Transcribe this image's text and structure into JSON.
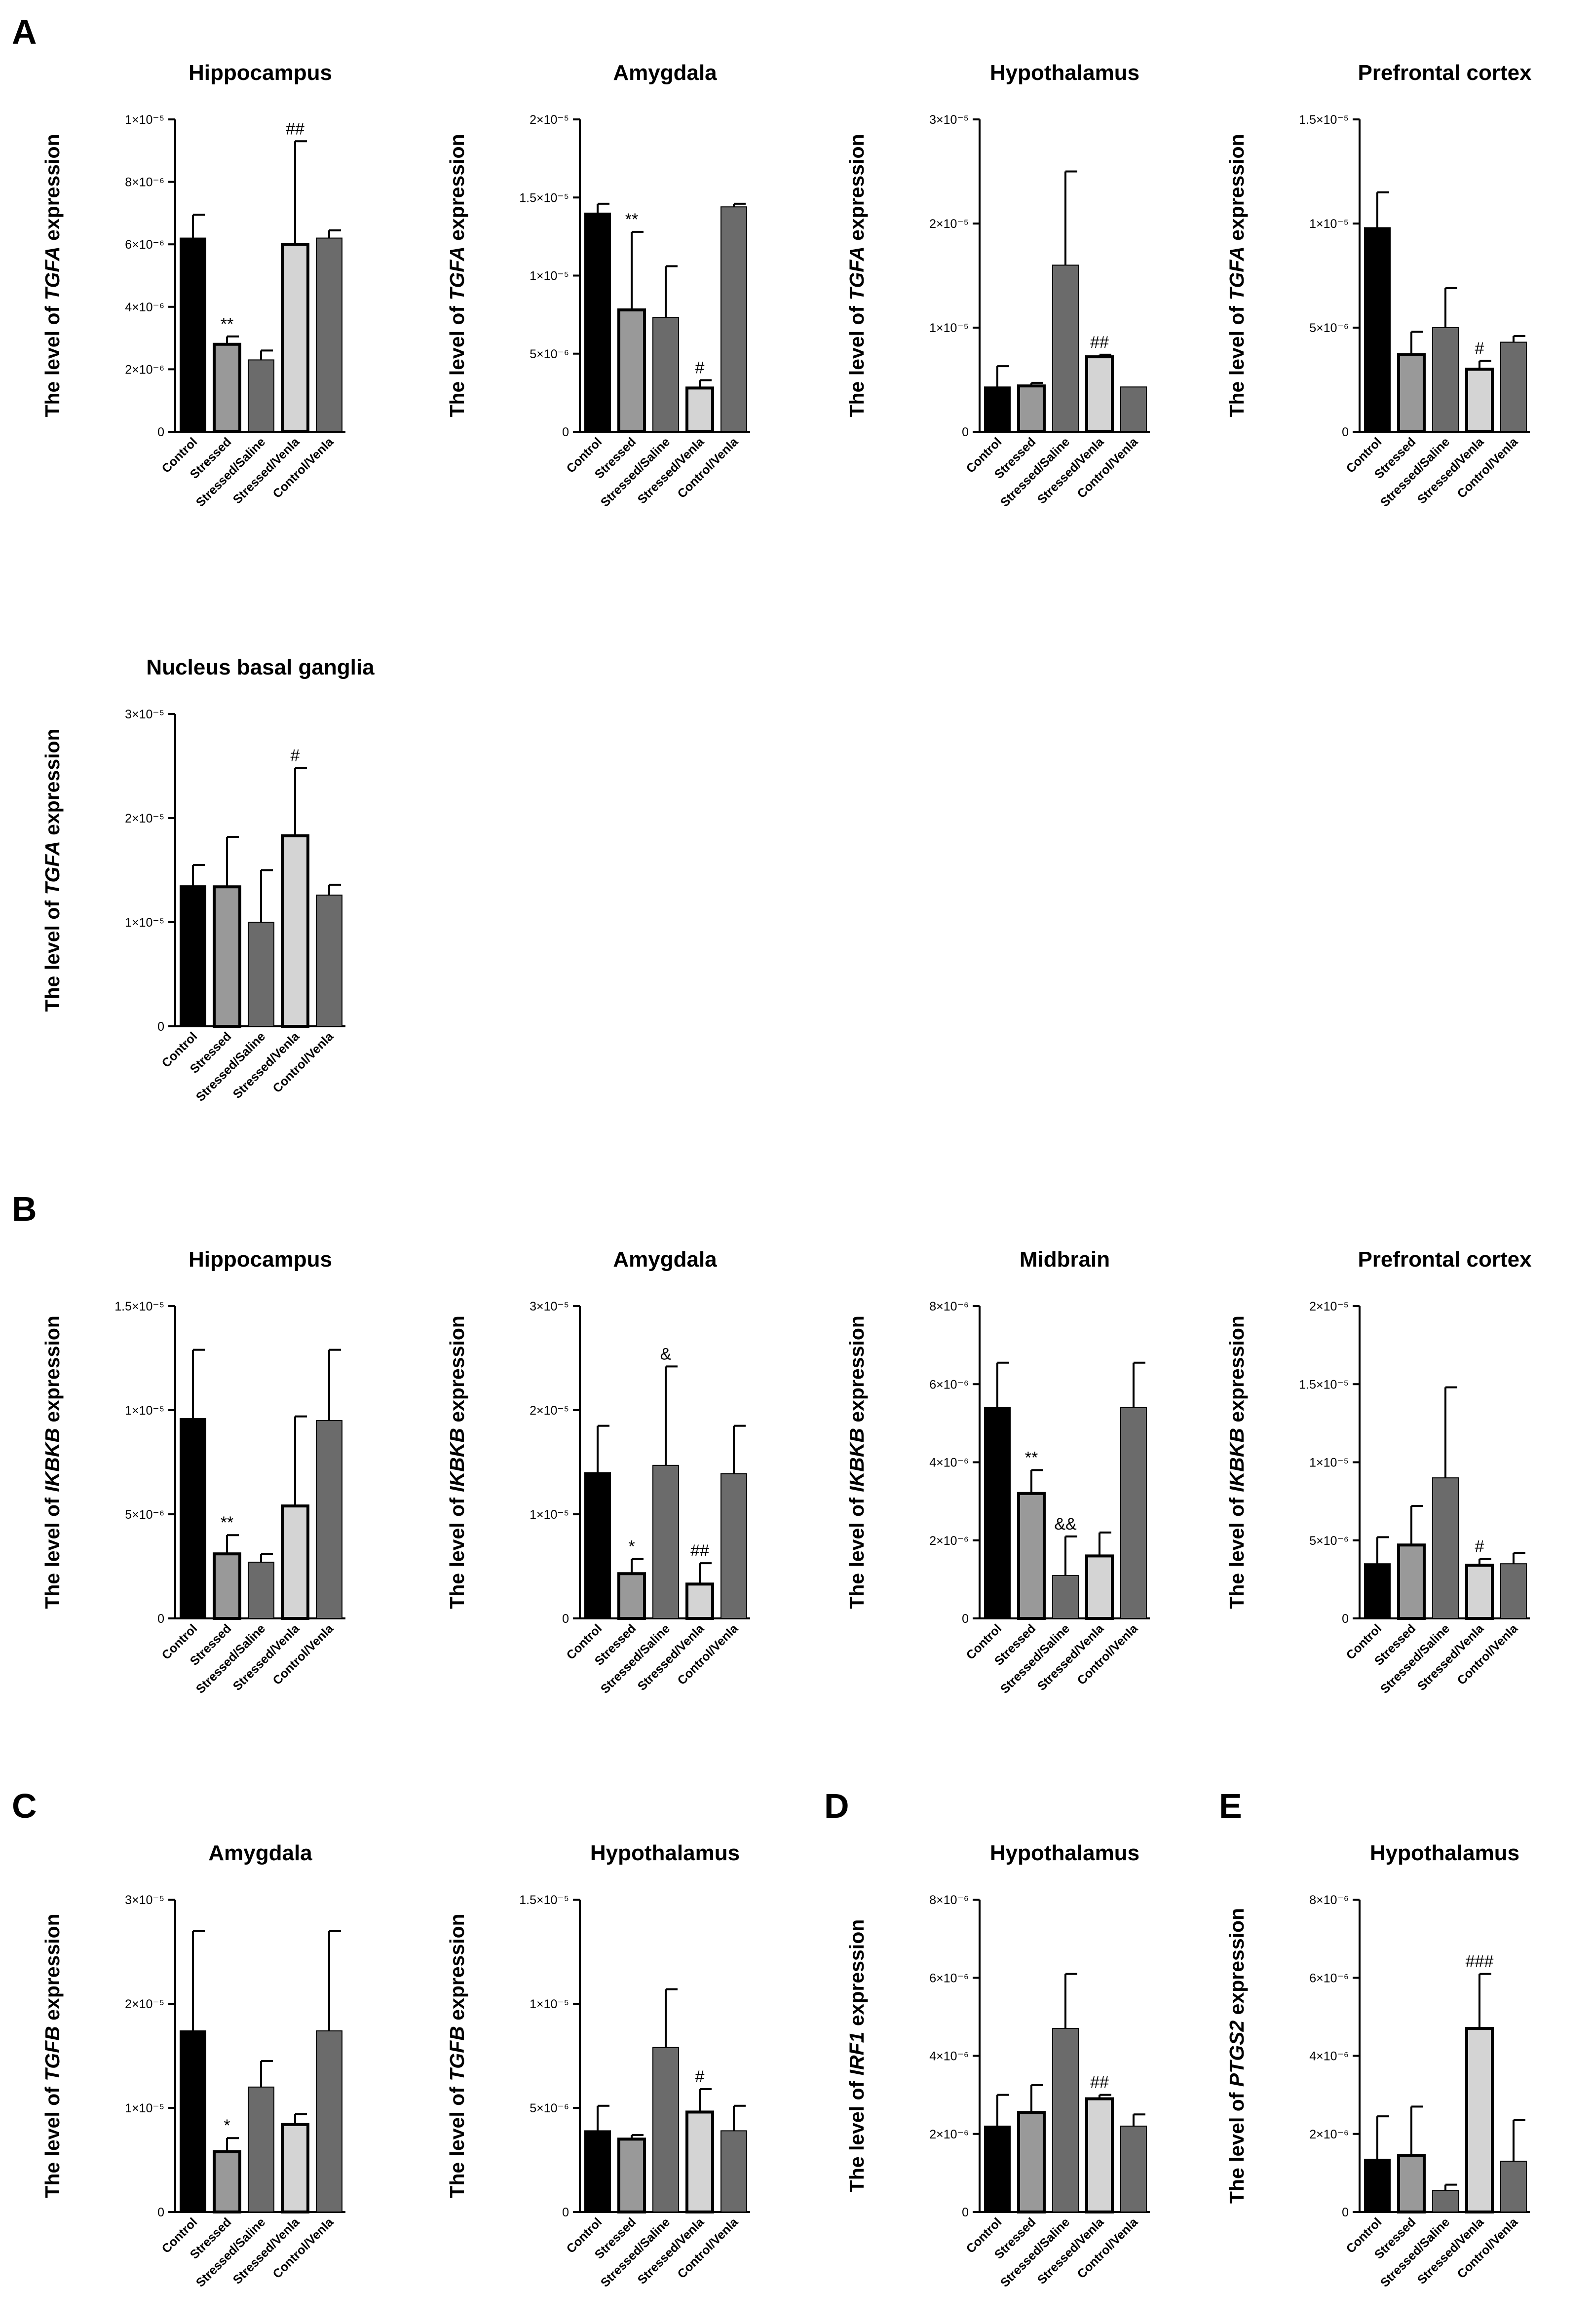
{
  "figure": {
    "panel_letters": [
      "A",
      "B",
      "C",
      "D",
      "E"
    ]
  },
  "colors": {
    "Control": "#000000",
    "Stressed": "#999999",
    "Stressed/Saline": "#6b6b6b",
    "Stressed/Venla": "#d4d4d4",
    "Control/Venla": "#6b6b6b"
  },
  "chart_data": [
    {
      "id": "A-hippocampus",
      "panel": "A",
      "type": "bar",
      "title": "Hippocampus",
      "gene": "TGFA",
      "ylabel_prefix": "The level of ",
      "ylabel_suffix": " expression",
      "categories": [
        "Control",
        "Stressed",
        "Stressed/Saline",
        "Stressed/Venla",
        "Control/Venla"
      ],
      "values": [
        6.2e-06,
        2.8e-06,
        2.3e-06,
        6e-06,
        6.2e-06
      ],
      "errors": [
        7.5e-07,
        2.5e-07,
        3e-07,
        3.3e-06,
        2.5e-07
      ],
      "annotations": [
        "",
        "**",
        "",
        "##",
        ""
      ],
      "ylim": [
        0,
        1e-05
      ],
      "ticks": [
        {
          "v": 0,
          "label": "0"
        },
        {
          "v": 2e-06,
          "label": "2×10⁻⁶"
        },
        {
          "v": 4e-06,
          "label": "4×10⁻⁶"
        },
        {
          "v": 6e-06,
          "label": "6×10⁻⁶"
        },
        {
          "v": 8e-06,
          "label": "8×10⁻⁶"
        },
        {
          "v": 1e-05,
          "label": "1×10⁻⁵"
        }
      ]
    },
    {
      "id": "A-amygdala",
      "panel": "A",
      "type": "bar",
      "title": "Amygdala",
      "gene": "TGFA",
      "ylabel_prefix": "The level of ",
      "ylabel_suffix": " expression",
      "categories": [
        "Control",
        "Stressed",
        "Stressed/Saline",
        "Stressed/Venla",
        "Control/Venla"
      ],
      "values": [
        1.4e-05,
        7.8e-06,
        7.3e-06,
        2.8e-06,
        1.44e-05
      ],
      "errors": [
        6e-07,
        5e-06,
        3.3e-06,
        5e-07,
        2e-07
      ],
      "annotations": [
        "",
        "**",
        "",
        "#",
        ""
      ],
      "ylim": [
        0,
        2e-05
      ],
      "ticks": [
        {
          "v": 0,
          "label": "0"
        },
        {
          "v": 5e-06,
          "label": "5×10⁻⁶"
        },
        {
          "v": 1e-05,
          "label": "1×10⁻⁵"
        },
        {
          "v": 1.5e-05,
          "label": "1.5×10⁻⁵"
        },
        {
          "v": 2e-05,
          "label": "2×10⁻⁵"
        }
      ]
    },
    {
      "id": "A-hypothalamus",
      "panel": "A",
      "type": "bar",
      "title": "Hypothalamus",
      "gene": "TGFA",
      "ylabel_prefix": "The level of ",
      "ylabel_suffix": " expression",
      "categories": [
        "Control",
        "Stressed",
        "Stressed/Saline",
        "Stressed/Venla",
        "Control/Venla"
      ],
      "values": [
        4.3e-06,
        4.4e-06,
        1.6e-05,
        7.2e-06,
        4.3e-06
      ],
      "errors": [
        2e-06,
        3e-07,
        9e-06,
        2e-07,
        0
      ],
      "annotations": [
        "",
        "",
        "",
        "##",
        ""
      ],
      "ylim": [
        0,
        3e-05
      ],
      "ticks": [
        {
          "v": 0,
          "label": "0"
        },
        {
          "v": 1e-05,
          "label": "1×10⁻⁵"
        },
        {
          "v": 2e-05,
          "label": "2×10⁻⁵"
        },
        {
          "v": 3e-05,
          "label": "3×10⁻⁵"
        }
      ]
    },
    {
      "id": "A-prefrontal",
      "panel": "A",
      "type": "bar",
      "title": "Prefrontal cortex",
      "gene": "TGFA",
      "ylabel_prefix": "The level of ",
      "ylabel_suffix": " expression",
      "categories": [
        "Control",
        "Stressed",
        "Stressed/Saline",
        "Stressed/Venla",
        "Control/Venla"
      ],
      "values": [
        9.8e-06,
        3.7e-06,
        5e-06,
        3e-06,
        4.3e-06
      ],
      "errors": [
        1.7e-06,
        1.1e-06,
        1.9e-06,
        4e-07,
        3e-07
      ],
      "annotations": [
        "",
        "",
        "",
        "#",
        ""
      ],
      "ylim": [
        0,
        1.5e-05
      ],
      "ticks": [
        {
          "v": 0,
          "label": "0"
        },
        {
          "v": 5e-06,
          "label": "5×10⁻⁶"
        },
        {
          "v": 1e-05,
          "label": "1×10⁻⁵"
        },
        {
          "v": 1.5e-05,
          "label": "1.5×10⁻⁵"
        }
      ]
    },
    {
      "id": "A-nbg",
      "panel": "A",
      "type": "bar",
      "title": "Nucleus basal ganglia",
      "gene": "TGFA",
      "ylabel_prefix": "The level of ",
      "ylabel_suffix": " expression",
      "categories": [
        "Control",
        "Stressed",
        "Stressed/Saline",
        "Stressed/Venla",
        "Control/Venla"
      ],
      "values": [
        1.35e-05,
        1.34e-05,
        1e-05,
        1.83e-05,
        1.26e-05
      ],
      "errors": [
        2e-06,
        4.8e-06,
        5e-06,
        6.5e-06,
        1e-06
      ],
      "annotations": [
        "",
        "",
        "",
        "#",
        ""
      ],
      "ylim": [
        0,
        3e-05
      ],
      "ticks": [
        {
          "v": 0,
          "label": "0"
        },
        {
          "v": 1e-05,
          "label": "1×10⁻⁵"
        },
        {
          "v": 2e-05,
          "label": "2×10⁻⁵"
        },
        {
          "v": 3e-05,
          "label": "3×10⁻⁵"
        }
      ]
    },
    {
      "id": "B-hippocampus",
      "panel": "B",
      "type": "bar",
      "title": "Hippocampus",
      "gene": "IKBKB",
      "ylabel_prefix": "The level of ",
      "ylabel_suffix": " expression",
      "categories": [
        "Control",
        "Stressed",
        "Stressed/Saline",
        "Stressed/Venla",
        "Control/Venla"
      ],
      "values": [
        9.6e-06,
        3.1e-06,
        2.7e-06,
        5.4e-06,
        9.5e-06
      ],
      "errors": [
        3.3e-06,
        9e-07,
        4e-07,
        4.3e-06,
        3.4e-06
      ],
      "annotations": [
        "",
        "**",
        "",
        "",
        ""
      ],
      "ylim": [
        0,
        1.5e-05
      ],
      "ticks": [
        {
          "v": 0,
          "label": "0"
        },
        {
          "v": 5e-06,
          "label": "5×10⁻⁶"
        },
        {
          "v": 1e-05,
          "label": "1×10⁻⁵"
        },
        {
          "v": 1.5e-05,
          "label": "1.5×10⁻⁵"
        }
      ]
    },
    {
      "id": "B-amygdala",
      "panel": "B",
      "type": "bar",
      "title": "Amygdala",
      "gene": "IKBKB",
      "ylabel_prefix": "The level of ",
      "ylabel_suffix": " expression",
      "categories": [
        "Control",
        "Stressed",
        "Stressed/Saline",
        "Stressed/Venla",
        "Control/Venla"
      ],
      "values": [
        1.4e-05,
        4.3e-06,
        1.47e-05,
        3.3e-06,
        1.39e-05
      ],
      "errors": [
        4.5e-06,
        1.4e-06,
        9.5e-06,
        2e-06,
        4.6e-06
      ],
      "annotations": [
        "",
        "*",
        "&",
        "##",
        ""
      ],
      "ylim": [
        0,
        3e-05
      ],
      "ticks": [
        {
          "v": 0,
          "label": "0"
        },
        {
          "v": 1e-05,
          "label": "1×10⁻⁵"
        },
        {
          "v": 2e-05,
          "label": "2×10⁻⁵"
        },
        {
          "v": 3e-05,
          "label": "3×10⁻⁵"
        }
      ]
    },
    {
      "id": "B-midbrain",
      "panel": "B",
      "type": "bar",
      "title": "Midbrain",
      "gene": "IKBKB",
      "ylabel_prefix": "The level of ",
      "ylabel_suffix": " expression",
      "categories": [
        "Control",
        "Stressed",
        "Stressed/Saline",
        "Stressed/Venla",
        "Control/Venla"
      ],
      "values": [
        5.4e-06,
        3.2e-06,
        1.1e-06,
        1.6e-06,
        5.4e-06
      ],
      "errors": [
        1.15e-06,
        6e-07,
        1e-06,
        6e-07,
        1.15e-06
      ],
      "annotations": [
        "",
        "**",
        "&&",
        "",
        ""
      ],
      "ylim": [
        0,
        8e-06
      ],
      "ticks": [
        {
          "v": 0,
          "label": "0"
        },
        {
          "v": 2e-06,
          "label": "2×10⁻⁶"
        },
        {
          "v": 4e-06,
          "label": "4×10⁻⁶"
        },
        {
          "v": 6e-06,
          "label": "6×10⁻⁶"
        },
        {
          "v": 8e-06,
          "label": "8×10⁻⁶"
        }
      ]
    },
    {
      "id": "B-prefrontal",
      "panel": "B",
      "type": "bar",
      "title": "Prefrontal cortex",
      "gene": "IKBKB",
      "ylabel_prefix": "The level of ",
      "ylabel_suffix": " expression",
      "categories": [
        "Control",
        "Stressed",
        "Stressed/Saline",
        "Stressed/Venla",
        "Control/Venla"
      ],
      "values": [
        3.5e-06,
        4.7e-06,
        9e-06,
        3.4e-06,
        3.5e-06
      ],
      "errors": [
        1.7e-06,
        2.5e-06,
        5.8e-06,
        4e-07,
        7e-07
      ],
      "annotations": [
        "",
        "",
        "",
        "#",
        ""
      ],
      "ylim": [
        0,
        2e-05
      ],
      "ticks": [
        {
          "v": 0,
          "label": "0"
        },
        {
          "v": 5e-06,
          "label": "5×10⁻⁶"
        },
        {
          "v": 1e-05,
          "label": "1×10⁻⁵"
        },
        {
          "v": 1.5e-05,
          "label": "1.5×10⁻⁵"
        },
        {
          "v": 2e-05,
          "label": "2×10⁻⁵"
        }
      ]
    },
    {
      "id": "C-amygdala",
      "panel": "C",
      "type": "bar",
      "title": "Amygdala",
      "gene": "TGFB",
      "ylabel_prefix": "The level of ",
      "ylabel_suffix": " expression",
      "categories": [
        "Control",
        "Stressed",
        "Stressed/Saline",
        "Stressed/Venla",
        "Control/Venla"
      ],
      "values": [
        1.74e-05,
        5.8e-06,
        1.2e-05,
        8.4e-06,
        1.74e-05
      ],
      "errors": [
        9.6e-06,
        1.3e-06,
        2.5e-06,
        1e-06,
        9.6e-06
      ],
      "annotations": [
        "",
        "*",
        "",
        "",
        ""
      ],
      "ylim": [
        0,
        3e-05
      ],
      "ticks": [
        {
          "v": 0,
          "label": "0"
        },
        {
          "v": 1e-05,
          "label": "1×10⁻⁵"
        },
        {
          "v": 2e-05,
          "label": "2×10⁻⁵"
        },
        {
          "v": 3e-05,
          "label": "3×10⁻⁵"
        }
      ]
    },
    {
      "id": "C-hypothalamus",
      "panel": "C",
      "type": "bar",
      "title": "Hypothalamus",
      "gene": "TGFB",
      "ylabel_prefix": "The level of ",
      "ylabel_suffix": " expression",
      "categories": [
        "Control",
        "Stressed",
        "Stressed/Saline",
        "Stressed/Venla",
        "Control/Venla"
      ],
      "values": [
        3.9e-06,
        3.5e-06,
        7.9e-06,
        4.8e-06,
        3.9e-06
      ],
      "errors": [
        1.2e-06,
        2e-07,
        2.8e-06,
        1.1e-06,
        1.2e-06
      ],
      "annotations": [
        "",
        "",
        "",
        "#",
        ""
      ],
      "ylim": [
        0,
        1.5e-05
      ],
      "ticks": [
        {
          "v": 0,
          "label": "0"
        },
        {
          "v": 5e-06,
          "label": "5×10⁻⁶"
        },
        {
          "v": 1e-05,
          "label": "1×10⁻⁵"
        },
        {
          "v": 1.5e-05,
          "label": "1.5×10⁻⁵"
        }
      ]
    },
    {
      "id": "D-hypothalamus",
      "panel": "D",
      "type": "bar",
      "title": "Hypothalamus",
      "gene": "IRF1",
      "ylabel_prefix": "The level of ",
      "ylabel_suffix": " expression",
      "categories": [
        "Control",
        "Stressed",
        "Stressed/Saline",
        "Stressed/Venla",
        "Control/Venla"
      ],
      "values": [
        2.2e-06,
        2.55e-06,
        4.7e-06,
        2.9e-06,
        2.2e-06
      ],
      "errors": [
        8e-07,
        7e-07,
        1.4e-06,
        1e-07,
        3e-07
      ],
      "annotations": [
        "",
        "",
        "",
        "##",
        ""
      ],
      "ylim": [
        0,
        8e-06
      ],
      "ticks": [
        {
          "v": 0,
          "label": "0"
        },
        {
          "v": 2e-06,
          "label": "2×10⁻⁶"
        },
        {
          "v": 4e-06,
          "label": "4×10⁻⁶"
        },
        {
          "v": 6e-06,
          "label": "6×10⁻⁶"
        },
        {
          "v": 8e-06,
          "label": "8×10⁻⁶"
        }
      ]
    },
    {
      "id": "E-hypothalamus",
      "panel": "E",
      "type": "bar",
      "title": "Hypothalamus",
      "gene": "PTGS2",
      "ylabel_prefix": "The level of ",
      "ylabel_suffix": " expression",
      "categories": [
        "Control",
        "Stressed",
        "Stressed/Saline",
        "Stressed/Venla",
        "Control/Venla"
      ],
      "values": [
        1.35e-06,
        1.45e-06,
        5.5e-07,
        4.7e-06,
        1.3e-06
      ],
      "errors": [
        1.1e-06,
        1.25e-06,
        1.5e-07,
        1.4e-06,
        1.05e-06
      ],
      "annotations": [
        "",
        "",
        "",
        "###",
        ""
      ],
      "ylim": [
        0,
        8e-06
      ],
      "ticks": [
        {
          "v": 0,
          "label": "0"
        },
        {
          "v": 2e-06,
          "label": "2×10⁻⁶"
        },
        {
          "v": 4e-06,
          "label": "4×10⁻⁶"
        },
        {
          "v": 6e-06,
          "label": "6×10⁻⁶"
        },
        {
          "v": 8e-06,
          "label": "8×10⁻⁶"
        }
      ]
    }
  ]
}
